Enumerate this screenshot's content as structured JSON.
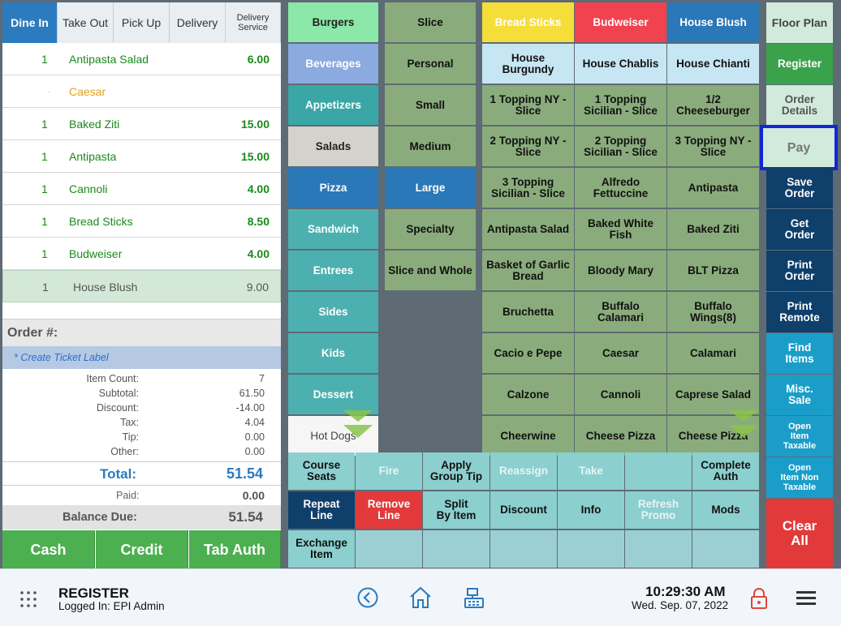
{
  "order_tabs": [
    "Dine In",
    "Take Out",
    "Pick Up",
    "Delivery",
    "Delivery\nService"
  ],
  "order_items": [
    {
      "qty": "1",
      "name": "Antipasta Salad",
      "price": "6.00"
    },
    {
      "qty": "·",
      "name": "Caesar",
      "price": ""
    },
    {
      "qty": "1",
      "name": "Baked Ziti",
      "price": "15.00"
    },
    {
      "qty": "1",
      "name": "Antipasta",
      "price": "15.00"
    },
    {
      "qty": "1",
      "name": "Cannoli",
      "price": "4.00"
    },
    {
      "qty": "1",
      "name": "Bread Sticks",
      "price": "8.50"
    },
    {
      "qty": "1",
      "name": "Budweiser",
      "price": "4.00"
    },
    {
      "qty": "1",
      "name": "House Blush",
      "price": "9.00"
    }
  ],
  "order": {
    "order_label": "Order #:",
    "ticket_label": "* Create Ticket Label",
    "summary": [
      {
        "label": "Item Count:",
        "value": "7"
      },
      {
        "label": "Subtotal:",
        "value": "61.50"
      },
      {
        "label": "Discount:",
        "value": "-14.00"
      },
      {
        "label": "Tax:",
        "value": "4.04"
      },
      {
        "label": "Tip:",
        "value": "0.00"
      },
      {
        "label": "Other:",
        "value": "0.00"
      }
    ],
    "total_label": "Total:",
    "total_value": "51.54",
    "paid_label": "Paid:",
    "paid_value": "0.00",
    "balance_label": "Balance Due:",
    "balance_value": "51.54"
  },
  "payment_buttons": [
    "Cash",
    "Credit",
    "Tab Auth"
  ],
  "categories": [
    {
      "label": "Burgers",
      "color": "#8ce8a8",
      "dark": false
    },
    {
      "label": "Beverages",
      "color": "#8aaae0",
      "dark": true
    },
    {
      "label": "Appetizers",
      "color": "#3aa6a6",
      "dark": true
    },
    {
      "label": "Salads",
      "color": "#d4d2cc",
      "dark": false
    },
    {
      "label": "Pizza",
      "color": "#2a78b8",
      "dark": true
    },
    {
      "label": "Sandwich",
      "color": "#4db0b0",
      "dark": true
    },
    {
      "label": "Entrees",
      "color": "#4db0b0",
      "dark": true
    },
    {
      "label": "Sides",
      "color": "#4db0b0",
      "dark": true
    },
    {
      "label": "Kids",
      "color": "#4db0b0",
      "dark": true
    },
    {
      "label": "Dessert",
      "color": "#4db0b0",
      "dark": true
    },
    {
      "label": "Hot Dogs",
      "color": "#f6f6f6",
      "dark": false
    }
  ],
  "subcategories": [
    {
      "label": "Slice",
      "color": "#8aac7c"
    },
    {
      "label": "Personal",
      "color": "#8aac7c"
    },
    {
      "label": "Small",
      "color": "#8aac7c"
    },
    {
      "label": "Medium",
      "color": "#8aac7c"
    },
    {
      "label": "Large",
      "color": "#2a78b8"
    },
    {
      "label": "Specialty",
      "color": "#8aac7c"
    },
    {
      "label": "Slice and Whole",
      "color": "#8aac7c"
    }
  ],
  "items": [
    {
      "label": "Bread Sticks",
      "color": "#f5de3a",
      "text": "#fff"
    },
    {
      "label": "Budweiser",
      "color": "#f0434f",
      "text": "#fff"
    },
    {
      "label": "House Blush",
      "color": "#2a78b8",
      "text": "#fff"
    },
    {
      "label": "House\nBurgundy",
      "color": "#c7e6f3",
      "text": "#111"
    },
    {
      "label": "House Chablis",
      "color": "#c7e6f3",
      "text": "#111"
    },
    {
      "label": "House Chianti",
      "color": "#c7e6f3",
      "text": "#111"
    },
    {
      "label": "1 Topping NY -\nSlice",
      "color": "#8aac7c",
      "text": "#111"
    },
    {
      "label": "1 Topping\nSicilian - Slice",
      "color": "#8aac7c",
      "text": "#111"
    },
    {
      "label": "1/2\nCheeseburger",
      "color": "#8aac7c",
      "text": "#111"
    },
    {
      "label": "2 Topping NY -\nSlice",
      "color": "#8aac7c",
      "text": "#111"
    },
    {
      "label": "2 Topping\nSicilian -  Slice",
      "color": "#8aac7c",
      "text": "#111"
    },
    {
      "label": "3 Topping NY -\nSlice",
      "color": "#8aac7c",
      "text": "#111"
    },
    {
      "label": "3 Topping\nSicilian - Slice",
      "color": "#8aac7c",
      "text": "#111"
    },
    {
      "label": "Alfredo\nFettuccine",
      "color": "#8aac7c",
      "text": "#111"
    },
    {
      "label": "Antipasta",
      "color": "#8aac7c",
      "text": "#111"
    },
    {
      "label": "Antipasta Salad",
      "color": "#8aac7c",
      "text": "#111"
    },
    {
      "label": "Baked White\nFish",
      "color": "#8aac7c",
      "text": "#111"
    },
    {
      "label": "Baked Ziti",
      "color": "#8aac7c",
      "text": "#111"
    },
    {
      "label": "Basket of Garlic\nBread",
      "color": "#8aac7c",
      "text": "#111"
    },
    {
      "label": "Bloody Mary",
      "color": "#8aac7c",
      "text": "#111"
    },
    {
      "label": "BLT Pizza",
      "color": "#8aac7c",
      "text": "#111"
    },
    {
      "label": "Bruchetta",
      "color": "#8aac7c",
      "text": "#111"
    },
    {
      "label": "Buffalo Calamari",
      "color": "#8aac7c",
      "text": "#111"
    },
    {
      "label": "Buffalo Wings(8)",
      "color": "#8aac7c",
      "text": "#111"
    },
    {
      "label": "Cacio e Pepe",
      "color": "#8aac7c",
      "text": "#111"
    },
    {
      "label": "Caesar",
      "color": "#8aac7c",
      "text": "#111"
    },
    {
      "label": "Calamari",
      "color": "#8aac7c",
      "text": "#111"
    },
    {
      "label": "Calzone",
      "color": "#8aac7c",
      "text": "#111"
    },
    {
      "label": "Cannoli",
      "color": "#8aac7c",
      "text": "#111"
    },
    {
      "label": "Caprese Salad",
      "color": "#8aac7c",
      "text": "#111"
    },
    {
      "label": "Cheerwine",
      "color": "#8aac7c",
      "text": "#111"
    },
    {
      "label": "Cheese Pizza",
      "color": "#8aac7c",
      "text": "#111"
    },
    {
      "label": "Cheese Pizza",
      "color": "#8aac7c",
      "text": "#111"
    }
  ],
  "actions": [
    {
      "label": "Course\nSeats",
      "color": "#8ccfcf",
      "enabled": true,
      "text": "#111"
    },
    {
      "label": "Fire",
      "color": "#8ccfcf",
      "enabled": false,
      "text": "#e8f4f4"
    },
    {
      "label": "Apply\nGroup Tip",
      "color": "#8ccfcf",
      "enabled": true,
      "text": "#111"
    },
    {
      "label": "Reassign",
      "color": "#8ccfcf",
      "enabled": false,
      "text": "#e8f4f4"
    },
    {
      "label": "Take",
      "color": "#8ccfcf",
      "enabled": false,
      "text": "#e8f4f4"
    },
    {
      "label": "",
      "color": "#8ccfcf",
      "enabled": false,
      "text": "#111"
    },
    {
      "label": "Complete\nAuth",
      "color": "#8ccfcf",
      "enabled": true,
      "text": "#111"
    },
    {
      "label": "Repeat\nLine",
      "color": "#0f3f6b",
      "enabled": true,
      "text": "#fff"
    },
    {
      "label": "Remove\nLine",
      "color": "#e23a3a",
      "enabled": true,
      "text": "#fff"
    },
    {
      "label": "Split\nBy Item",
      "color": "#8ccfcf",
      "enabled": true,
      "text": "#111"
    },
    {
      "label": "Discount",
      "color": "#8ccfcf",
      "enabled": true,
      "text": "#111"
    },
    {
      "label": "Info",
      "color": "#8ccfcf",
      "enabled": true,
      "text": "#111"
    },
    {
      "label": "Refresh\nPromo",
      "color": "#8ccfcf",
      "enabled": false,
      "text": "#e8f4f4"
    },
    {
      "label": "Mods",
      "color": "#8ccfcf",
      "enabled": true,
      "text": "#111"
    },
    {
      "label": "Exchange\nItem",
      "color": "#8ccfcf",
      "enabled": true,
      "text": "#111"
    },
    {
      "label": "",
      "color": "#9ccfd4",
      "enabled": false,
      "text": "#111"
    },
    {
      "label": "",
      "color": "#9ccfd4",
      "enabled": false,
      "text": "#111"
    },
    {
      "label": "",
      "color": "#9ccfd4",
      "enabled": false,
      "text": "#111"
    },
    {
      "label": "",
      "color": "#9ccfd4",
      "enabled": false,
      "text": "#111"
    },
    {
      "label": "",
      "color": "#9ccfd4",
      "enabled": false,
      "text": "#111"
    },
    {
      "label": "",
      "color": "#9ccfd4",
      "enabled": false,
      "text": "#111"
    }
  ],
  "right_actions": [
    {
      "label": "Floor Plan",
      "color": "#d2eadb",
      "text": "#444",
      "h": 50
    },
    {
      "label": "Register",
      "color": "#3aa24a",
      "text": "#fff",
      "h": 50
    },
    {
      "label": "Order\nDetails",
      "color": "#d2eadb",
      "text": "#555",
      "h": 50
    },
    {
      "label": "Pay",
      "color": "#d2eadb",
      "text": "#777",
      "h": 50
    },
    {
      "label": "Save\nOrder",
      "color": "#0f3f6b",
      "text": "#fff",
      "h": 50
    },
    {
      "label": "Get\nOrder",
      "color": "#0f3f6b",
      "text": "#fff",
      "h": 50
    },
    {
      "label": "Print\nOrder",
      "color": "#0f3f6b",
      "text": "#fff",
      "h": 50
    },
    {
      "label": "Print\nRemote",
      "color": "#0f3f6b",
      "text": "#fff",
      "h": 50
    },
    {
      "label": "Find\nItems",
      "color": "#1a9ec9",
      "text": "#fff",
      "h": 50
    },
    {
      "label": "Misc.\nSale",
      "color": "#1a9ec9",
      "text": "#fff",
      "h": 50
    },
    {
      "label": "Open\nItem\nTaxable",
      "color": "#1a9ec9",
      "text": "#fff",
      "h": 50
    },
    {
      "label": "Open\nItem Non\nTaxable",
      "color": "#1a9ec9",
      "text": "#fff",
      "h": 50
    },
    {
      "label": "Clear\nAll",
      "color": "#e23a3a",
      "text": "#fff",
      "h": 86
    }
  ],
  "footer": {
    "title": "REGISTER",
    "logged_in": "Logged In:  EPI Admin",
    "time": "10:29:30 AM",
    "date": "Wed. Sep. 07, 2022"
  },
  "colors": {
    "selected_outline": "#1226d6"
  }
}
